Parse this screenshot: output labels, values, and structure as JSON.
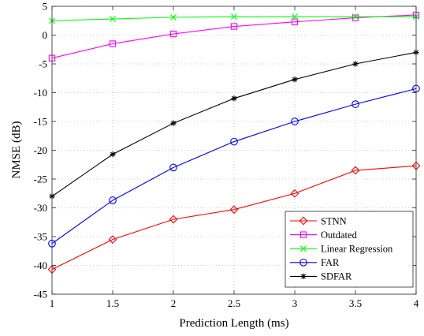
{
  "chart_data": {
    "type": "line",
    "title": "",
    "xlabel": "Prediction Length (ms)",
    "ylabel": "NMSE (dB)",
    "xlim": [
      1,
      4
    ],
    "ylim": [
      -45,
      5
    ],
    "xticks": [
      1,
      1.5,
      2,
      2.5,
      3,
      3.5,
      4
    ],
    "xtick_labels": [
      "1",
      "1.5",
      "2",
      "2.5",
      "3",
      "3.5",
      "4"
    ],
    "yticks": [
      5,
      0,
      -5,
      -10,
      -15,
      -20,
      -25,
      -30,
      -35,
      -40,
      -45
    ],
    "ytick_labels": [
      "5",
      "0",
      "-5",
      "-10",
      "-15",
      "-20",
      "-25",
      "-30",
      "-35",
      "-40",
      "-45"
    ],
    "grid": true,
    "legend_position": "bottom-right",
    "x": [
      1,
      1.5,
      2,
      2.5,
      3,
      3.5,
      4
    ],
    "series": [
      {
        "name": "STNN",
        "color": "#ff0000",
        "marker": "diamond",
        "values": [
          -40.7,
          -35.5,
          -32.0,
          -30.3,
          -27.5,
          -23.5,
          -22.7
        ]
      },
      {
        "name": "Outdated",
        "color": "#ff00ff",
        "marker": "square",
        "values": [
          -4.0,
          -1.5,
          0.2,
          1.5,
          2.3,
          3.0,
          3.5
        ]
      },
      {
        "name": "Linear Regression",
        "color": "#00ff00",
        "marker": "x",
        "values": [
          2.5,
          2.8,
          3.1,
          3.2,
          3.2,
          3.2,
          3.2
        ]
      },
      {
        "name": "FAR",
        "color": "#0000ff",
        "marker": "circle",
        "values": [
          -36.2,
          -28.7,
          -23.0,
          -18.5,
          -15.0,
          -12.0,
          -9.3
        ]
      },
      {
        "name": "SDFAR",
        "color": "#000000",
        "marker": "star",
        "values": [
          -28.0,
          -20.7,
          -15.3,
          -11.0,
          -7.7,
          -5.0,
          -3.0
        ]
      }
    ]
  }
}
